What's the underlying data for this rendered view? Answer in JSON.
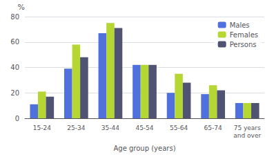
{
  "chart_data": {
    "type": "bar",
    "categories": [
      "15-24",
      "25-34",
      "35-44",
      "45-54",
      "55-64",
      "65-74",
      "75 years\nand over"
    ],
    "series": [
      {
        "name": "Males",
        "values": [
          11,
          39,
          67,
          42,
          20,
          19,
          12
        ]
      },
      {
        "name": "Females",
        "values": [
          21,
          58,
          75,
          42,
          35,
          26,
          12
        ]
      },
      {
        "name": "Persons",
        "values": [
          17,
          48,
          71,
          42,
          28,
          22,
          12
        ]
      }
    ],
    "xlabel": "Age group (years)",
    "ylabel": "%",
    "ylim": [
      0,
      80
    ],
    "yticks": [
      0,
      20,
      40,
      60,
      80
    ],
    "grid": true,
    "legend": "upper right"
  }
}
